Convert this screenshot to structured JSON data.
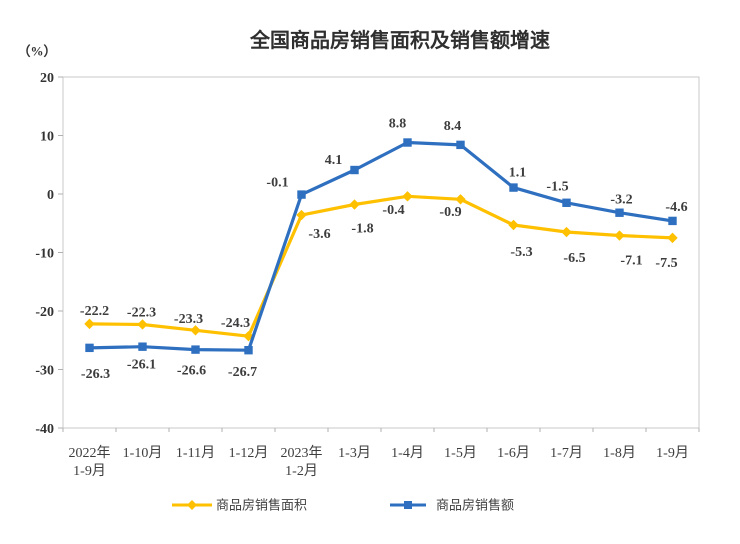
{
  "chart_data": {
    "type": "line",
    "title": "全国商品房销售面积及销售额增速",
    "unit_label": "（%）",
    "categories": [
      "2022年\n1-9月",
      "1-10月",
      "1-11月",
      "1-12月",
      "2023年\n1-2月",
      "1-3月",
      "1-4月",
      "1-5月",
      "1-6月",
      "1-7月",
      "1-8月",
      "1-9月"
    ],
    "y_axis": {
      "min": -40,
      "max": 20,
      "step": 10,
      "tick_labels": [
        "20",
        "10",
        "0",
        "-10",
        "-20",
        "-30",
        "-40"
      ]
    },
    "grid": false,
    "legend_position": "bottom",
    "series": [
      {
        "name": "商品房销售面积",
        "color": "#FFC000",
        "marker": "diamond",
        "values": [
          -22.2,
          -22.3,
          -23.3,
          -24.3,
          -3.6,
          -1.8,
          -0.4,
          -0.9,
          -5.3,
          -6.5,
          -7.1,
          -7.5
        ],
        "labels": [
          "-22.2",
          "-22.3",
          "-23.3",
          "-24.3",
          "-3.6",
          "-1.8",
          "-0.4",
          "-0.9",
          "-5.3",
          "-6.5",
          "-7.1",
          "-7.5"
        ],
        "label_offsets": [
          [
            5,
            -14
          ],
          [
            -1,
            -13
          ],
          [
            -7,
            -12
          ],
          [
            -13,
            -14
          ],
          [
            18,
            18
          ],
          [
            8,
            23
          ],
          [
            -14,
            13
          ],
          [
            -10,
            12
          ],
          [
            8,
            26
          ],
          [
            8,
            25
          ],
          [
            12,
            24
          ],
          [
            -6,
            24
          ]
        ]
      },
      {
        "name": "商品房销售额",
        "color": "#2E6FC0",
        "marker": "square",
        "values": [
          -26.3,
          -26.1,
          -26.6,
          -26.7,
          -0.1,
          4.1,
          8.8,
          8.4,
          1.1,
          -1.5,
          -3.2,
          -4.6
        ],
        "labels": [
          "-26.3",
          "-26.1",
          "-26.6",
          "-26.7",
          "-0.1",
          "4.1",
          "8.8",
          "8.4",
          "1.1",
          "-1.5",
          "-3.2",
          "-4.6"
        ],
        "label_offsets": [
          [
            6,
            25
          ],
          [
            -1,
            17
          ],
          [
            -4,
            20
          ],
          [
            -6,
            21
          ],
          [
            -24,
            -13
          ],
          [
            -21,
            -11
          ],
          [
            -10,
            -20
          ],
          [
            -8,
            -20
          ],
          [
            4,
            -16
          ],
          [
            -9,
            -17
          ],
          [
            2,
            -14
          ],
          [
            4,
            -15
          ]
        ]
      }
    ],
    "style": {
      "plot_border_color": "#c9c9c9",
      "tick_color": "#b0b0b0",
      "background": "#ffffff"
    }
  }
}
